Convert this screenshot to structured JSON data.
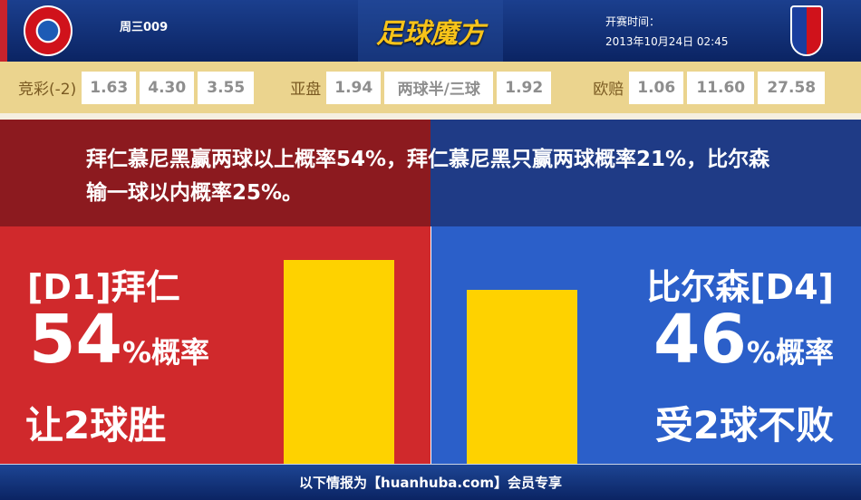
{
  "header": {
    "match_id": "周三009",
    "brand": "足球魔方",
    "time_label": "开赛时间：",
    "time_value": "2013年10月24日 02:45",
    "home_logo": "FC BAYERN MÜNCHEN",
    "away_logo": "FC VIKTORIA PLZEN"
  },
  "odds": {
    "jingcai": {
      "label": "竞彩(-2)",
      "values": [
        "1.63",
        "4.30",
        "3.55"
      ]
    },
    "yapan": {
      "label": "亚盘",
      "values": [
        "1.94",
        "两球半/三球",
        "1.92"
      ]
    },
    "oupei": {
      "label": "欧赔",
      "values": [
        "1.06",
        "11.60",
        "27.58"
      ]
    }
  },
  "summary": "拜仁慕尼黑赢两球以上概率54%，拜仁慕尼黑只赢两球概率21%，比尔森输一球以内概率25%。",
  "home": {
    "team": "[D1]拜仁",
    "pct": "54",
    "pct_suffix": "%概率",
    "result": "让2球胜",
    "value": 54,
    "color": "#d0292c"
  },
  "away": {
    "team": "比尔森[D4]",
    "pct": "46",
    "pct_suffix": "%概率",
    "result": "受2球不败",
    "value": 46,
    "color": "#2b5fc9"
  },
  "bar_color": "#fed200",
  "footer": "以下情报为【huanhuba.com】会员专享"
}
